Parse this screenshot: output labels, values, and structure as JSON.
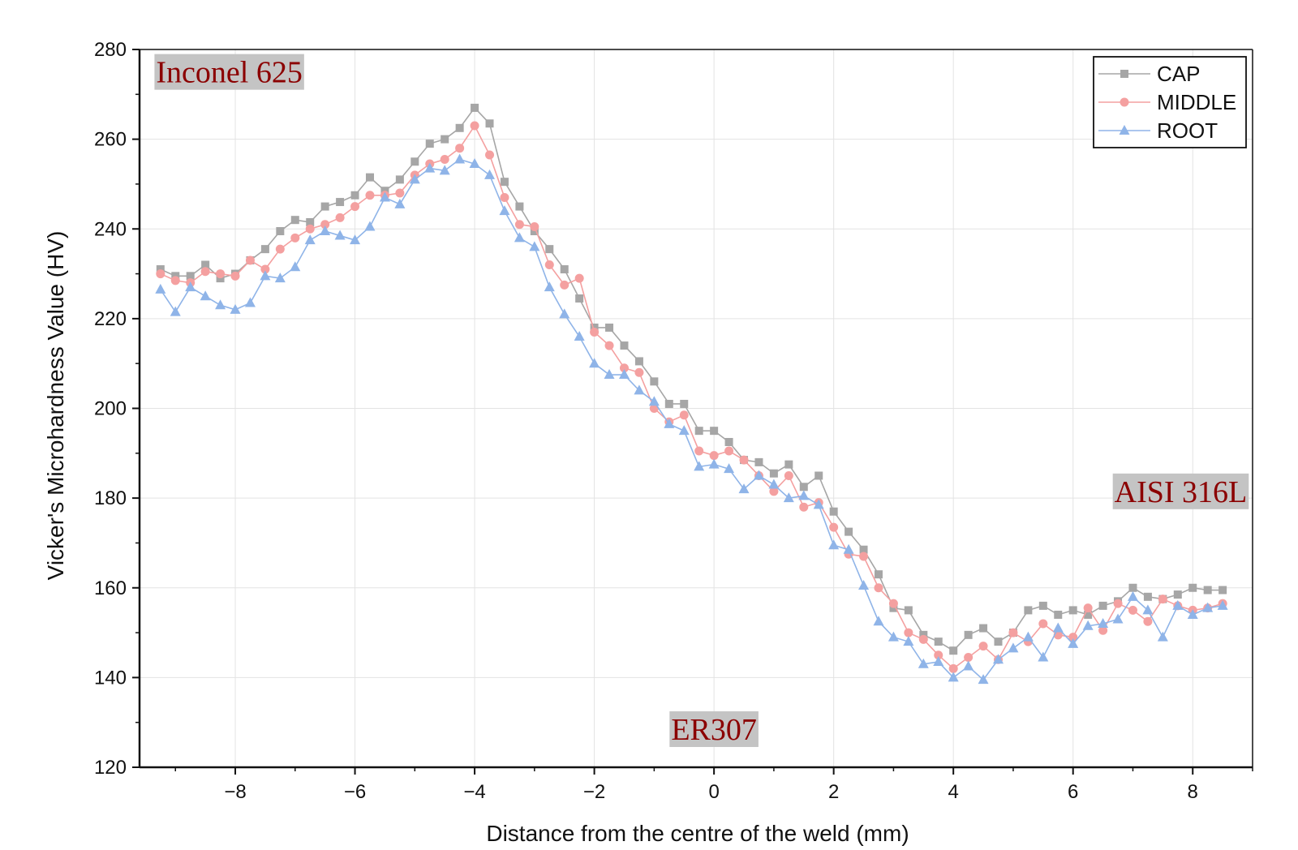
{
  "chart_data": {
    "type": "line",
    "title": "",
    "xlabel": "Distance from the centre of the weld (mm)",
    "ylabel": "Vicker's Microhardness Value (HV)",
    "xlim": [
      -9.6,
      9.0
    ],
    "ylim": [
      120,
      280
    ],
    "xticks": [
      -8,
      -6,
      -4,
      -2,
      0,
      2,
      4,
      6,
      8
    ],
    "xtick_labels": [
      "−8",
      "−6",
      "−4",
      "−2",
      "0",
      "2",
      "4",
      "6",
      "8"
    ],
    "yticks": [
      120,
      140,
      160,
      180,
      200,
      220,
      240,
      260,
      280
    ],
    "ytick_labels": [
      "120",
      "140",
      "160",
      "180",
      "200",
      "220",
      "240",
      "260",
      "280"
    ],
    "grid": true,
    "legend_position": "top-right",
    "x": [
      -9.25,
      -9.0,
      -8.75,
      -8.5,
      -8.25,
      -8.0,
      -7.75,
      -7.5,
      -7.25,
      -7.0,
      -6.75,
      -6.5,
      -6.25,
      -6.0,
      -5.75,
      -5.5,
      -5.25,
      -5.0,
      -4.75,
      -4.5,
      -4.25,
      -4.0,
      -3.75,
      -3.5,
      -3.25,
      -3.0,
      -2.75,
      -2.5,
      -2.25,
      -2.0,
      -1.75,
      -1.5,
      -1.25,
      -1.0,
      -0.75,
      -0.5,
      -0.25,
      0.0,
      0.25,
      0.5,
      0.75,
      1.0,
      1.25,
      1.5,
      1.75,
      2.0,
      2.25,
      2.5,
      2.75,
      3.0,
      3.25,
      3.5,
      3.75,
      4.0,
      4.25,
      4.5,
      4.75,
      5.0,
      5.25,
      5.5,
      5.75,
      6.0,
      6.25,
      6.5,
      6.75,
      7.0,
      7.25,
      7.5,
      7.75,
      8.0,
      8.25,
      8.5
    ],
    "series": [
      {
        "name": "CAP",
        "color": "#a6a6a6",
        "marker": "square",
        "values": [
          231,
          229.5,
          229.5,
          232,
          229,
          230,
          233,
          235.5,
          239.5,
          242,
          241.5,
          245,
          246,
          247.5,
          251.5,
          248.5,
          251,
          255,
          259,
          260,
          262.5,
          267,
          263.5,
          250.5,
          245,
          239.5,
          235.5,
          231,
          224.5,
          218,
          218,
          214,
          210.5,
          206,
          201,
          201,
          195,
          195,
          192.5,
          188.5,
          188,
          185.5,
          187.5,
          182.5,
          185,
          177,
          172.5,
          168.5,
          163,
          155.5,
          155,
          149.5,
          148,
          146,
          149.5,
          151,
          148,
          150,
          155,
          156,
          154,
          155,
          154,
          156,
          157,
          160,
          158,
          157.5,
          158.5,
          160,
          159.5,
          159.5
        ]
      },
      {
        "name": "MIDDLE",
        "color": "#f4a0a0",
        "marker": "circle",
        "values": [
          230,
          228.5,
          228,
          230.5,
          230,
          229.5,
          233,
          231,
          235.5,
          238,
          240,
          241,
          242.5,
          245,
          247.5,
          247.5,
          248,
          252,
          254.5,
          255.5,
          258,
          263,
          256.5,
          247,
          241,
          240.5,
          232,
          227.5,
          229,
          217,
          214,
          209,
          208,
          200,
          197,
          198.5,
          190.5,
          189.5,
          190.5,
          188.5,
          185,
          181.5,
          185,
          178,
          179,
          173.5,
          167.5,
          167,
          160,
          156.5,
          150,
          148.5,
          145,
          142,
          144.5,
          147,
          144,
          150,
          148,
          152,
          149.5,
          149,
          155.5,
          150.5,
          156.5,
          155,
          152.5,
          157.5,
          156,
          155,
          155.5,
          156.5
        ]
      },
      {
        "name": "ROOT",
        "color": "#8fb4e8",
        "marker": "triangle",
        "values": [
          226.5,
          221.5,
          227,
          225,
          223,
          222,
          223.5,
          229.5,
          229,
          231.5,
          237.5,
          239.5,
          238.5,
          237.5,
          240.5,
          247,
          245.5,
          251,
          253.5,
          253,
          255.5,
          254.5,
          252,
          244,
          238,
          236,
          227,
          221,
          216,
          210,
          207.5,
          207.5,
          204,
          201.5,
          196.5,
          195,
          187,
          187.5,
          186.5,
          182,
          185,
          183,
          180,
          180.5,
          178.5,
          169.5,
          168.5,
          160.5,
          152.5,
          149,
          148,
          143,
          143.5,
          140,
          142.5,
          139.5,
          144,
          146.5,
          149,
          144.5,
          151,
          147.5,
          151.5,
          152,
          153,
          158,
          155,
          149,
          156,
          154,
          155.5,
          156
        ]
      }
    ],
    "annotations": [
      {
        "text": "Inconel 625",
        "x": -8.1,
        "y": 275,
        "color": "#8b0000",
        "background": "#c4c4c4"
      },
      {
        "text": "AISI 316L",
        "x": 7.8,
        "y": 181.5,
        "color": "#8b0000",
        "background": "#c4c4c4"
      },
      {
        "text": "ER307",
        "x": 0.0,
        "y": 128.5,
        "color": "#8b0000",
        "background": "#c4c4c4"
      }
    ]
  }
}
